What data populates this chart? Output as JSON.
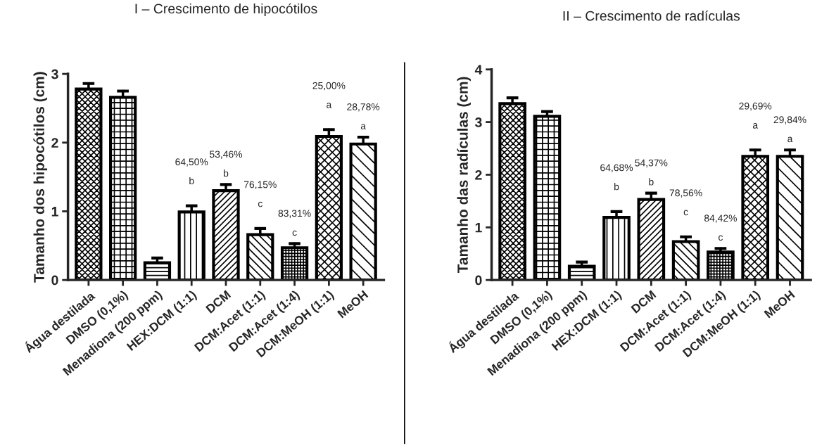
{
  "chart_data": [
    {
      "type": "bar",
      "title": "I – Crescimento de hipocótilos",
      "ylabel": "Tamanho dos hipocótilos (cm)",
      "categories": [
        "Água destilada",
        "DMSO (0,1%)",
        "Menadiona (200 ppm)",
        "HEX:DCM (1:1)",
        "DCM",
        "DCM:Acet (1:1)",
        "DCM:Acet (1:4)",
        "DCM:MeOH (1:1)",
        "MeOH"
      ],
      "values": [
        2.78,
        2.66,
        0.25,
        0.99,
        1.3,
        0.66,
        0.47,
        2.09,
        1.98
      ],
      "errors": [
        [
          2.78,
          2.86
        ],
        [
          2.66,
          2.75
        ],
        [
          0.25,
          0.32
        ],
        [
          0.99,
          1.08
        ],
        [
          1.3,
          1.39
        ],
        [
          0.66,
          0.75
        ],
        [
          0.47,
          0.53
        ],
        [
          2.09,
          2.19
        ],
        [
          1.98,
          2.08
        ]
      ],
      "color": "#000000",
      "ylim": [
        0,
        3
      ],
      "yticks": [
        0,
        1,
        2,
        3
      ],
      "grid": false,
      "legend": false,
      "annotations": [
        "64,50%\nb",
        "53,46%\nb",
        "76,15%\nc",
        "83,31%\nc",
        "25,00%\na",
        "28,78%\na"
      ]
    },
    {
      "type": "bar",
      "title": "II – Crescimento de radículas",
      "ylabel": "Tamanho das radículas (cm)",
      "categories": [
        "Água destilada",
        "DMSO (0,1%)",
        "Menadiona (200 ppm)",
        "HEX:DCM (1:1)",
        "DCM",
        "DCM:Acet (1:1)",
        "DCM:Acet (1:4)",
        "DCM:MeOH (1:1)",
        "MeOH"
      ],
      "values": [
        3.35,
        3.11,
        0.26,
        1.19,
        1.53,
        0.73,
        0.53,
        2.35,
        2.35
      ],
      "errors": [
        [
          3.35,
          3.46
        ],
        [
          3.11,
          3.2
        ],
        [
          0.26,
          0.34
        ],
        [
          1.19,
          1.3
        ],
        [
          1.53,
          1.65
        ],
        [
          0.73,
          0.82
        ],
        [
          0.53,
          0.6
        ],
        [
          2.35,
          2.47
        ],
        [
          2.35,
          2.47
        ]
      ],
      "color": "#000000",
      "ylim": [
        0,
        4
      ],
      "yticks": [
        0,
        1,
        2,
        3,
        4
      ],
      "grid": false,
      "legend": false,
      "annotations": [
        "64,68%\nb",
        "54,37%\nb",
        "78,56%\nc",
        "84,42%\nc",
        "29,69%\na",
        "29,84%\na"
      ]
    }
  ]
}
